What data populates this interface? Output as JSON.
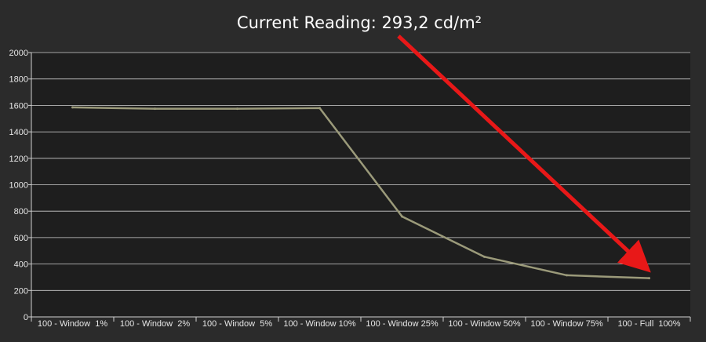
{
  "chart_data": {
    "type": "line",
    "title": "Current Reading: 293,2 cd/m²",
    "xlabel": "",
    "ylabel": "",
    "categories": [
      "100 - Window  1%",
      "100 - Window  2%",
      "100 - Window  5%",
      "100 - Window 10%",
      "100 - Window 25%",
      "100 - Window 50%",
      "100 - Window 75%",
      "100 - Full  100%"
    ],
    "series": [
      {
        "values": [
          1585,
          1575,
          1575,
          1580,
          760,
          455,
          315,
          293
        ],
        "color": "#9b9a7a"
      }
    ],
    "ylim": [
      0,
      2000
    ],
    "yticks": [
      0,
      200,
      400,
      600,
      800,
      1000,
      1200,
      1400,
      1600,
      1800,
      2000
    ],
    "grid": true,
    "legend": "none",
    "annotation": {
      "type": "arrow",
      "color": "#e81818",
      "points_to": "100 - Full  100%"
    },
    "colors": {
      "background": "#2b2b2b",
      "plot_background": "#1e1e1e",
      "grid": "#d0d0d0",
      "text": "#ffffff"
    }
  }
}
